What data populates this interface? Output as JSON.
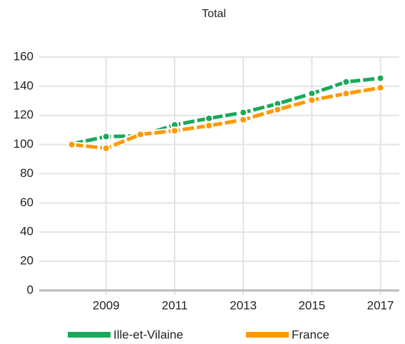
{
  "chart_data": {
    "type": "line",
    "title": "Total",
    "x": [
      2008,
      2009,
      2010,
      2011,
      2012,
      2013,
      2014,
      2015,
      2016,
      2017
    ],
    "series": [
      {
        "name": "Ille-et-Vilaine",
        "color": "#1aa85a",
        "values": [
          100.5,
          105.5,
          106,
          113.5,
          118,
          122,
          128,
          135,
          143,
          145.5
        ]
      },
      {
        "name": "France",
        "color": "#ff9800",
        "values": [
          100,
          97.5,
          107,
          109.5,
          113,
          117,
          124,
          130.5,
          135,
          139
        ]
      }
    ],
    "xlim": [
      2007.05,
      2017.55
    ],
    "xticks": [
      2009,
      2011,
      2013,
      2015,
      2017
    ],
    "ylim": [
      0,
      160
    ],
    "yticks": [
      0,
      20,
      40,
      60,
      80,
      100,
      120,
      140,
      160
    ],
    "grid": true,
    "legend": "bottom"
  }
}
